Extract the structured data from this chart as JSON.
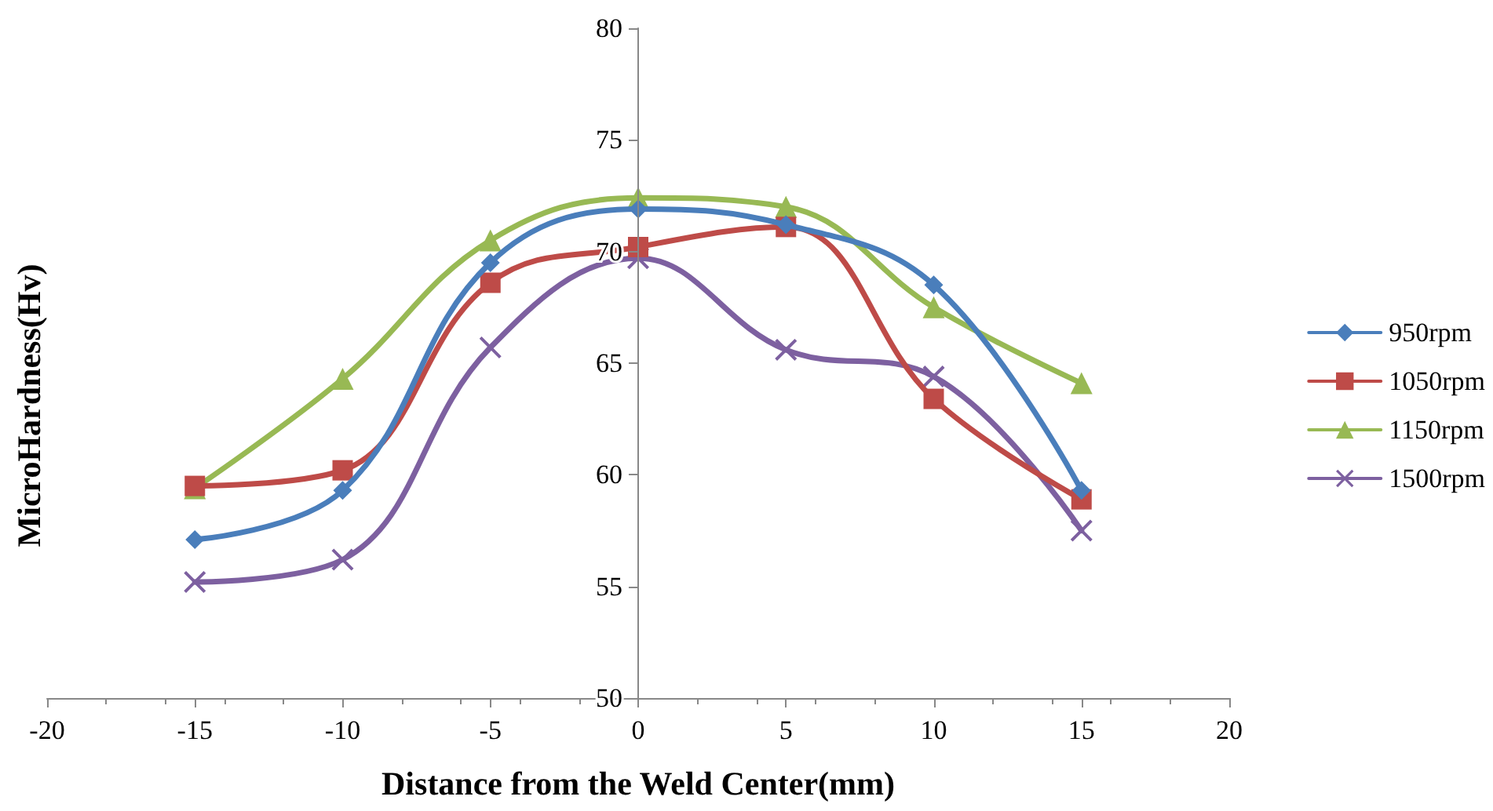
{
  "chart_data": {
    "type": "line",
    "xlabel": "Distance from the Weld Center(mm)",
    "ylabel": "MicroHardness(Hv)",
    "x": [
      -15,
      -10,
      -5,
      0,
      5,
      10,
      15
    ],
    "series": [
      {
        "name": "950rpm",
        "color": "#4a7ebb",
        "marker": "diamond",
        "values": [
          57.1,
          59.3,
          69.5,
          71.9,
          71.2,
          68.5,
          59.3
        ]
      },
      {
        "name": "1050rpm",
        "color": "#be4b48",
        "marker": "square",
        "values": [
          59.5,
          60.2,
          68.6,
          70.2,
          71.1,
          63.4,
          58.9
        ]
      },
      {
        "name": "1150rpm",
        "color": "#98b954",
        "marker": "triangle",
        "values": [
          59.4,
          64.3,
          70.5,
          72.4,
          72.0,
          67.5,
          64.1
        ]
      },
      {
        "name": "1500rpm",
        "color": "#7d60a0",
        "marker": "cross",
        "values": [
          55.2,
          56.2,
          65.7,
          69.7,
          65.6,
          64.4,
          57.5
        ]
      }
    ],
    "xlim": [
      -20,
      20
    ],
    "xticks": [
      -20,
      -15,
      -10,
      -5,
      0,
      5,
      10,
      15,
      20
    ],
    "ylim": [
      50,
      80
    ],
    "yticks": [
      50,
      55,
      60,
      65,
      70,
      75,
      80
    ],
    "grid": false,
    "legend": "right",
    "line_style": "solid"
  }
}
